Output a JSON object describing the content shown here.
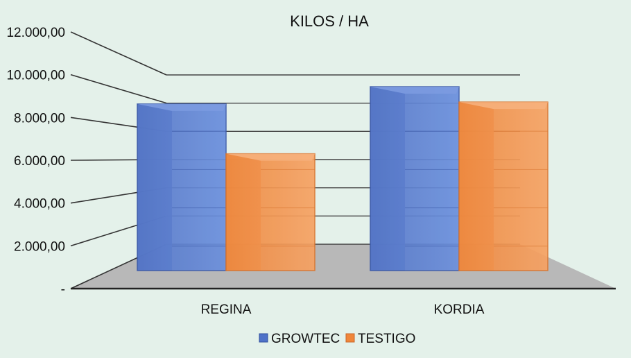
{
  "chart_data": {
    "type": "bar",
    "title": "KILOS / HA",
    "categories": [
      "REGINA",
      "KORDIA"
    ],
    "series": [
      {
        "name": "GROWTEC",
        "values": [
          8700,
          9600
        ]
      },
      {
        "name": "TESTIGO",
        "values": [
          6100,
          8800
        ]
      }
    ],
    "y_tick_labels": [
      "-",
      "2.000,00",
      "4.000,00",
      "6.000,00",
      "8.000,00",
      "10.000,00",
      "12.000,00"
    ],
    "ylim": [
      0,
      12000
    ],
    "grid": true,
    "legend_position": "bottom",
    "colors": {
      "growtec": "#5b7fd0",
      "testigo": "#f2904a",
      "floor": "#b8b8b8",
      "background": "#e4f1ea"
    }
  }
}
